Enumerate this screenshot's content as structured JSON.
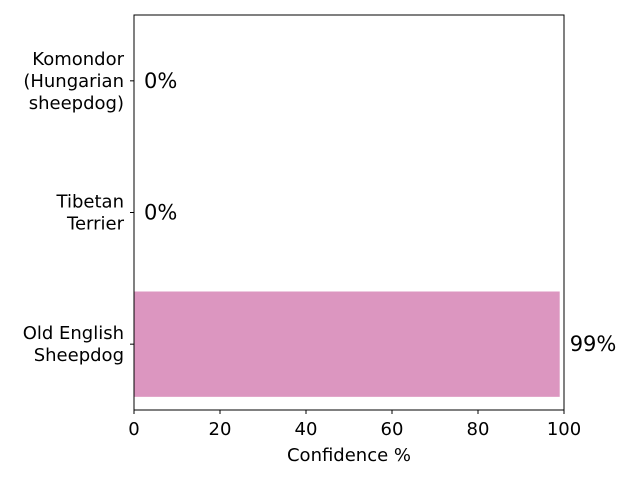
{
  "chart_data": {
    "type": "bar",
    "orientation": "horizontal",
    "title": "",
    "xlabel": "Confidence %",
    "ylabel": "",
    "xlim": [
      0,
      100
    ],
    "xticks": [
      0,
      20,
      40,
      60,
      80,
      100
    ],
    "xtick_labels": [
      "0",
      "20",
      "40",
      "60",
      "80",
      "100"
    ],
    "categories": [
      "Komondor (Hungarian sheepdog)",
      "Tibetan Terrier",
      "Old English Sheepdog"
    ],
    "category_label_lines": [
      [
        "Komondor",
        "(Hungarian",
        "sheepdog)"
      ],
      [
        "Tibetan",
        "Terrier"
      ],
      [
        "Old English",
        "Sheepdog"
      ]
    ],
    "values": [
      0,
      0,
      99
    ],
    "data_labels": [
      "0%",
      "0%",
      "99%"
    ],
    "bar_color": "#dc96c0",
    "grid": false,
    "legend": "none"
  }
}
